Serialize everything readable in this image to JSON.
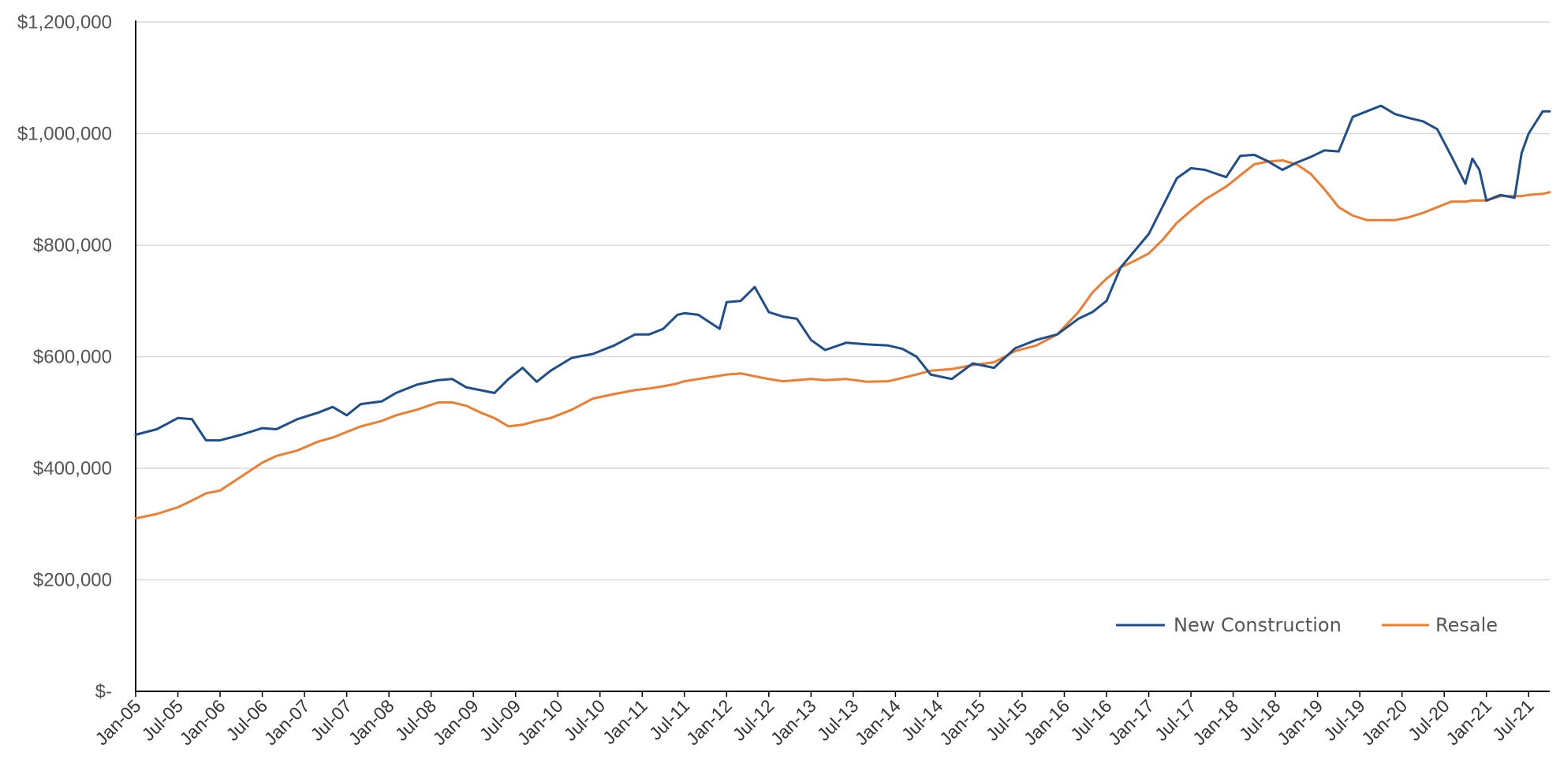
{
  "colors": {
    "new_construction": "#1f4e8c",
    "resale": "#ed7d31",
    "grid": "#d9d9d9",
    "axis": "#000000"
  },
  "chart_data": {
    "type": "line",
    "title": "",
    "xlabel": "",
    "ylabel": "",
    "ylim": [
      0,
      1200000
    ],
    "y_ticks": [
      0,
      200000,
      400000,
      600000,
      800000,
      1000000,
      1200000
    ],
    "y_tick_labels": [
      "$-",
      "$200,000",
      "$400,000",
      "$600,000",
      "$800,000",
      "$1,000,000",
      "$1,200,000"
    ],
    "x_range": [
      "2005-01",
      "2021-10"
    ],
    "x_tick_labels": [
      "Jan-05",
      "Jul-05",
      "Jan-06",
      "Jul-06",
      "Jan-07",
      "Jul-07",
      "Jan-08",
      "Jul-08",
      "Jan-09",
      "Jul-09",
      "Jan-10",
      "Jul-10",
      "Jan-11",
      "Jul-11",
      "Jan-12",
      "Jul-12",
      "Jan-13",
      "Jul-13",
      "Jan-14",
      "Jul-14",
      "Jan-15",
      "Jul-15",
      "Jan-16",
      "Jul-16",
      "Jan-17",
      "Jul-17",
      "Jan-18",
      "Jul-18",
      "Jan-19",
      "Jul-19",
      "Jan-20",
      "Jul-20",
      "Jan-21",
      "Jul-21"
    ],
    "grid": "horizontal",
    "legend_position": "bottom-right",
    "series": [
      {
        "name": "New Construction",
        "x": [
          "2005-01",
          "2005-04",
          "2005-07",
          "2005-09",
          "2005-11",
          "2006-01",
          "2006-04",
          "2006-07",
          "2006-09",
          "2006-12",
          "2007-03",
          "2007-05",
          "2007-07",
          "2007-09",
          "2007-12",
          "2008-02",
          "2008-05",
          "2008-08",
          "2008-10",
          "2008-12",
          "2009-02",
          "2009-04",
          "2009-06",
          "2009-08",
          "2009-10",
          "2009-12",
          "2010-03",
          "2010-06",
          "2010-09",
          "2010-12",
          "2011-02",
          "2011-04",
          "2011-06",
          "2011-07",
          "2011-09",
          "2011-12",
          "2012-01",
          "2012-03",
          "2012-05",
          "2012-07",
          "2012-09",
          "2012-11",
          "2013-01",
          "2013-03",
          "2013-06",
          "2013-09",
          "2013-12",
          "2014-02",
          "2014-04",
          "2014-06",
          "2014-09",
          "2014-12",
          "2015-03",
          "2015-06",
          "2015-09",
          "2015-12",
          "2016-03",
          "2016-05",
          "2016-07",
          "2016-09",
          "2016-11",
          "2017-01",
          "2017-03",
          "2017-05",
          "2017-07",
          "2017-09",
          "2017-12",
          "2018-02",
          "2018-04",
          "2018-06",
          "2018-08",
          "2018-10",
          "2018-12",
          "2019-02",
          "2019-04",
          "2019-06",
          "2019-08",
          "2019-10",
          "2019-12",
          "2020-02",
          "2020-04",
          "2020-06",
          "2020-08",
          "2020-10",
          "2020-11",
          "2020-12",
          "2021-01",
          "2021-03",
          "2021-05",
          "2021-06",
          "2021-07",
          "2021-09",
          "2021-10"
        ],
        "values": [
          460000,
          470000,
          490000,
          488000,
          450000,
          450000,
          460000,
          472000,
          470000,
          488000,
          500000,
          510000,
          495000,
          515000,
          520000,
          535000,
          550000,
          558000,
          560000,
          545000,
          540000,
          535000,
          560000,
          580000,
          555000,
          575000,
          598000,
          605000,
          620000,
          640000,
          640000,
          650000,
          675000,
          678000,
          675000,
          650000,
          698000,
          700000,
          725000,
          680000,
          672000,
          668000,
          630000,
          612000,
          625000,
          622000,
          620000,
          614000,
          600000,
          568000,
          560000,
          588000,
          580000,
          615000,
          630000,
          640000,
          668000,
          680000,
          700000,
          760000,
          790000,
          820000,
          870000,
          920000,
          938000,
          935000,
          922000,
          960000,
          962000,
          950000,
          935000,
          948000,
          958000,
          970000,
          968000,
          1030000,
          1040000,
          1050000,
          1035000,
          1028000,
          1022000,
          1008000,
          960000,
          910000,
          955000,
          935000,
          880000,
          890000,
          885000,
          965000,
          1000000,
          1040000,
          1040000
        ]
      },
      {
        "name": "Resale",
        "x": [
          "2005-01",
          "2005-04",
          "2005-07",
          "2005-09",
          "2005-11",
          "2006-01",
          "2006-04",
          "2006-07",
          "2006-09",
          "2006-12",
          "2007-03",
          "2007-05",
          "2007-07",
          "2007-09",
          "2007-12",
          "2008-02",
          "2008-05",
          "2008-08",
          "2008-10",
          "2008-12",
          "2009-02",
          "2009-04",
          "2009-06",
          "2009-08",
          "2009-10",
          "2009-12",
          "2010-03",
          "2010-06",
          "2010-09",
          "2010-12",
          "2011-02",
          "2011-04",
          "2011-06",
          "2011-07",
          "2011-09",
          "2011-12",
          "2012-01",
          "2012-03",
          "2012-05",
          "2012-07",
          "2012-09",
          "2012-11",
          "2013-01",
          "2013-03",
          "2013-06",
          "2013-09",
          "2013-12",
          "2014-02",
          "2014-04",
          "2014-06",
          "2014-09",
          "2014-12",
          "2015-03",
          "2015-06",
          "2015-09",
          "2015-12",
          "2016-03",
          "2016-05",
          "2016-07",
          "2016-09",
          "2016-11",
          "2017-01",
          "2017-03",
          "2017-05",
          "2017-07",
          "2017-09",
          "2017-12",
          "2018-02",
          "2018-04",
          "2018-06",
          "2018-08",
          "2018-10",
          "2018-12",
          "2019-02",
          "2019-04",
          "2019-06",
          "2019-08",
          "2019-10",
          "2019-12",
          "2020-02",
          "2020-04",
          "2020-06",
          "2020-08",
          "2020-10",
          "2020-11",
          "2020-12",
          "2021-01",
          "2021-03",
          "2021-05",
          "2021-06",
          "2021-07",
          "2021-09",
          "2021-10"
        ],
        "values": [
          310000,
          318000,
          330000,
          342000,
          355000,
          360000,
          385000,
          410000,
          422000,
          432000,
          448000,
          455000,
          465000,
          475000,
          485000,
          495000,
          505000,
          518000,
          518000,
          512000,
          500000,
          490000,
          475000,
          478000,
          485000,
          490000,
          505000,
          525000,
          533000,
          540000,
          543000,
          547000,
          552000,
          556000,
          560000,
          566000,
          568000,
          570000,
          565000,
          560000,
          556000,
          558000,
          560000,
          558000,
          560000,
          555000,
          556000,
          562000,
          568000,
          575000,
          578000,
          585000,
          590000,
          610000,
          620000,
          640000,
          680000,
          715000,
          740000,
          760000,
          772000,
          785000,
          810000,
          840000,
          862000,
          882000,
          905000,
          925000,
          945000,
          950000,
          952000,
          945000,
          928000,
          900000,
          868000,
          853000,
          845000,
          845000,
          845000,
          850000,
          858000,
          868000,
          878000,
          878000,
          880000,
          880000,
          880000,
          888000,
          888000,
          888000,
          890000,
          892000,
          895000
        ]
      }
    ]
  }
}
